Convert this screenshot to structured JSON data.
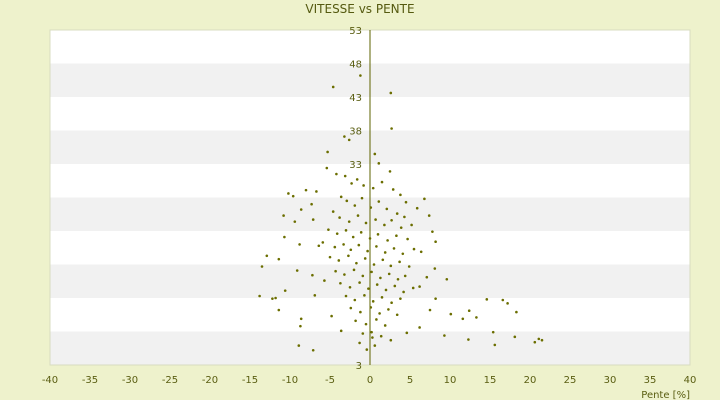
{
  "chart_data": {
    "type": "scatter",
    "title": "VITESSE vs PENTE",
    "xlabel": "Pente [%]",
    "ylabel": "",
    "xlim": [
      -40,
      40
    ],
    "ylim": [
      3,
      53
    ],
    "x_ticks": [
      -40,
      -35,
      -30,
      -25,
      -20,
      -15,
      -10,
      -5,
      0,
      5,
      10,
      15,
      20,
      25,
      30,
      35,
      40
    ],
    "y_ticks": [
      3,
      8,
      13,
      18,
      23,
      28,
      33,
      38,
      43,
      48,
      53
    ],
    "y_tick_labels_visible": [
      "53",
      "48",
      "43",
      "38",
      "33",
      "3"
    ],
    "grid": "horizontal alternating bands",
    "marker_color": "#6b6e00",
    "series": [
      {
        "points": [
          [
            -4.6,
            44.5
          ],
          [
            -1.2,
            46.2
          ],
          [
            2.6,
            43.6
          ],
          [
            2.7,
            38.3
          ],
          [
            -3.2,
            37.1
          ],
          [
            -2.6,
            36.6
          ],
          [
            -5.3,
            34.8
          ],
          [
            0.6,
            34.5
          ],
          [
            1.1,
            33.1
          ],
          [
            -5.4,
            32.4
          ],
          [
            -4.2,
            31.5
          ],
          [
            2.5,
            31.9
          ],
          [
            -10.2,
            28.6
          ],
          [
            -9.6,
            28.2
          ],
          [
            -8.0,
            29.1
          ],
          [
            -6.7,
            28.9
          ],
          [
            -7.3,
            27.0
          ],
          [
            -8.6,
            26.2
          ],
          [
            -10.8,
            25.3
          ],
          [
            -9.4,
            24.4
          ],
          [
            -7.1,
            24.7
          ],
          [
            6.8,
            27.8
          ],
          [
            7.4,
            25.3
          ],
          [
            5.9,
            26.4
          ],
          [
            -10.7,
            22.1
          ],
          [
            -8.8,
            21.0
          ],
          [
            -6.4,
            20.8
          ],
          [
            7.8,
            22.9
          ],
          [
            8.2,
            21.4
          ],
          [
            6.4,
            19.9
          ],
          [
            -12.9,
            19.3
          ],
          [
            -13.5,
            17.7
          ],
          [
            -11.4,
            18.8
          ],
          [
            -9.1,
            17.1
          ],
          [
            -7.2,
            16.4
          ],
          [
            -5.7,
            15.6
          ],
          [
            8.1,
            17.4
          ],
          [
            7.1,
            16.1
          ],
          [
            6.2,
            14.7
          ],
          [
            9.6,
            15.8
          ],
          [
            8.2,
            12.9
          ],
          [
            7.5,
            11.2
          ],
          [
            -13.8,
            13.3
          ],
          [
            -12.2,
            12.9
          ],
          [
            -11.4,
            11.2
          ],
          [
            -10.6,
            14.1
          ],
          [
            -11.8,
            13.0
          ],
          [
            -8.6,
            9.9
          ],
          [
            -4.8,
            10.3
          ],
          [
            -6.9,
            13.4
          ],
          [
            -8.7,
            8.8
          ],
          [
            -7.1,
            5.2
          ],
          [
            -8.9,
            5.9
          ],
          [
            -3.6,
            8.1
          ],
          [
            -1.3,
            6.3
          ],
          [
            -0.4,
            5.3
          ],
          [
            0.2,
            7.9
          ],
          [
            0.6,
            5.9
          ],
          [
            1.4,
            7.3
          ],
          [
            2.6,
            6.7
          ],
          [
            4.6,
            7.8
          ],
          [
            6.2,
            8.6
          ],
          [
            9.3,
            7.4
          ],
          [
            12.3,
            6.8
          ],
          [
            10.1,
            10.6
          ],
          [
            11.6,
            9.9
          ],
          [
            13.3,
            10.1
          ],
          [
            12.4,
            11.1
          ],
          [
            14.6,
            12.8
          ],
          [
            16.6,
            12.7
          ],
          [
            17.2,
            12.2
          ],
          [
            18.3,
            10.9
          ],
          [
            15.4,
            7.9
          ],
          [
            15.6,
            6.0
          ],
          [
            18.1,
            7.2
          ],
          [
            20.6,
            6.4
          ],
          [
            21.1,
            6.9
          ],
          [
            21.5,
            6.7
          ],
          [
            -3.1,
            31.2
          ],
          [
            -2.3,
            30.1
          ],
          [
            -1.6,
            30.7
          ],
          [
            -0.8,
            29.8
          ],
          [
            0.4,
            29.4
          ],
          [
            1.5,
            30.3
          ],
          [
            2.9,
            29.2
          ],
          [
            3.8,
            28.4
          ],
          [
            4.5,
            27.3
          ],
          [
            -3.6,
            28.1
          ],
          [
            -2.9,
            27.5
          ],
          [
            -1.9,
            26.8
          ],
          [
            -1.0,
            27.9
          ],
          [
            0.1,
            26.5
          ],
          [
            1.1,
            27.4
          ],
          [
            2.1,
            26.3
          ],
          [
            3.4,
            25.6
          ],
          [
            4.3,
            25.1
          ],
          [
            -4.6,
            25.9
          ],
          [
            -3.8,
            25.0
          ],
          [
            -2.6,
            24.4
          ],
          [
            -1.5,
            25.3
          ],
          [
            -0.5,
            24.2
          ],
          [
            0.7,
            24.7
          ],
          [
            1.8,
            23.9
          ],
          [
            2.7,
            24.6
          ],
          [
            3.9,
            23.5
          ],
          [
            5.2,
            23.9
          ],
          [
            -5.2,
            23.2
          ],
          [
            -4.1,
            22.6
          ],
          [
            -3.0,
            23.1
          ],
          [
            -2.1,
            22.1
          ],
          [
            -1.1,
            22.8
          ],
          [
            0.0,
            21.9
          ],
          [
            1.0,
            22.5
          ],
          [
            2.2,
            21.6
          ],
          [
            3.3,
            22.3
          ],
          [
            4.7,
            21.8
          ],
          [
            -5.9,
            21.3
          ],
          [
            -4.4,
            20.6
          ],
          [
            -3.3,
            21.0
          ],
          [
            -2.4,
            20.2
          ],
          [
            -1.4,
            20.9
          ],
          [
            -0.3,
            20.0
          ],
          [
            0.8,
            20.7
          ],
          [
            1.9,
            19.8
          ],
          [
            3.0,
            20.4
          ],
          [
            4.1,
            19.6
          ],
          [
            5.5,
            20.3
          ],
          [
            -5.0,
            19.1
          ],
          [
            -3.9,
            18.6
          ],
          [
            -2.7,
            19.3
          ],
          [
            -1.7,
            18.2
          ],
          [
            -0.6,
            18.9
          ],
          [
            0.5,
            18.0
          ],
          [
            1.6,
            18.7
          ],
          [
            2.6,
            17.8
          ],
          [
            3.7,
            18.4
          ],
          [
            4.9,
            17.7
          ],
          [
            -4.3,
            17.0
          ],
          [
            -3.2,
            16.5
          ],
          [
            -2.0,
            17.2
          ],
          [
            -0.9,
            16.3
          ],
          [
            0.2,
            16.9
          ],
          [
            1.3,
            16.0
          ],
          [
            2.4,
            16.6
          ],
          [
            3.5,
            15.8
          ],
          [
            4.4,
            16.3
          ],
          [
            -3.7,
            15.2
          ],
          [
            -2.5,
            14.6
          ],
          [
            -1.3,
            15.3
          ],
          [
            -0.2,
            14.4
          ],
          [
            0.9,
            15.0
          ],
          [
            2.0,
            14.2
          ],
          [
            3.1,
            14.8
          ],
          [
            4.2,
            13.9
          ],
          [
            5.4,
            14.5
          ],
          [
            -3.0,
            13.3
          ],
          [
            -1.9,
            12.7
          ],
          [
            -0.7,
            13.4
          ],
          [
            0.4,
            12.5
          ],
          [
            1.5,
            13.1
          ],
          [
            2.7,
            12.3
          ],
          [
            3.8,
            12.9
          ],
          [
            -2.4,
            11.5
          ],
          [
            -1.2,
            10.9
          ],
          [
            0.1,
            11.6
          ],
          [
            1.2,
            10.7
          ],
          [
            2.3,
            11.3
          ],
          [
            3.4,
            10.5
          ],
          [
            -1.8,
            9.6
          ],
          [
            -0.5,
            9.1
          ],
          [
            0.8,
            9.8
          ],
          [
            1.9,
            8.9
          ],
          [
            -0.9,
            7.7
          ],
          [
            0.3,
            7.1
          ]
        ]
      }
    ]
  }
}
